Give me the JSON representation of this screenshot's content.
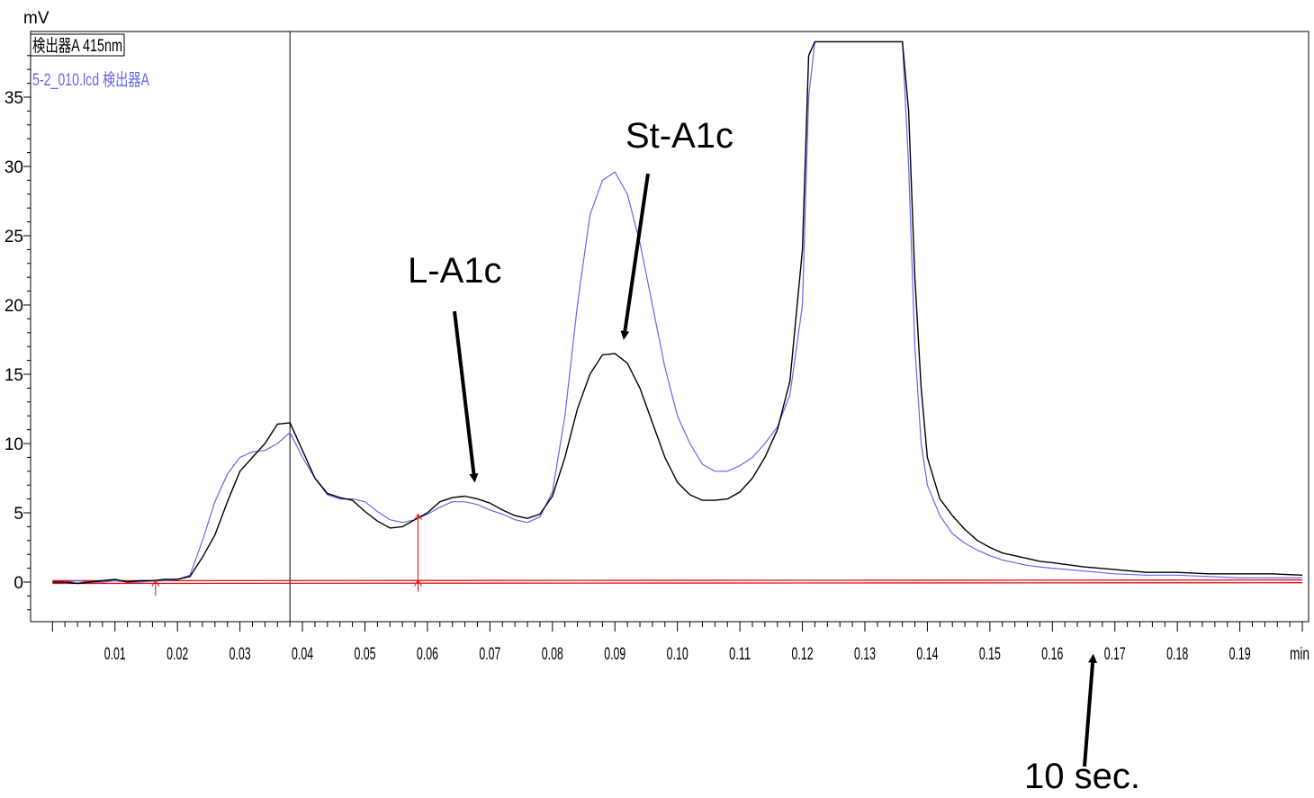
{
  "chart_data": {
    "type": "line",
    "ylabel": "mV",
    "xunit_label": "min",
    "xlim": [
      0.0,
      0.2
    ],
    "ylim": [
      -3,
      39
    ],
    "x_ticks": [
      0.01,
      0.02,
      0.03,
      0.04,
      0.05,
      0.06,
      0.07,
      0.08,
      0.09,
      0.1,
      0.11,
      0.12,
      0.13,
      0.14,
      0.15,
      0.16,
      0.17,
      0.18,
      0.19
    ],
    "x_tick_labels": [
      "0.01",
      "0.02",
      "0.03",
      "0.04",
      "0.05",
      "0.06",
      "0.07",
      "0.08",
      "0.09",
      "0.10",
      "0.11",
      "0.12",
      "0.13",
      "0.14",
      "0.15",
      "0.16",
      "0.17",
      "0.18",
      "0.19"
    ],
    "y_ticks": [
      0,
      5,
      10,
      15,
      20,
      25,
      30,
      35
    ],
    "y_tick_labels": [
      "0",
      "5",
      "10",
      "15",
      "20",
      "25",
      "30",
      "35"
    ],
    "legend": [
      "検出器A 415nm",
      "5-2_010.lcd 検出器A"
    ],
    "colors": {
      "series_black": "#000000",
      "series_blue": "#6666ee",
      "baseline": "#dd1111",
      "marker": "#dd1111"
    },
    "cursor_x": 0.038,
    "series": [
      {
        "color": "#000000",
        "x": [
          0.0,
          0.002,
          0.004,
          0.006,
          0.008,
          0.01,
          0.012,
          0.014,
          0.016,
          0.018,
          0.02,
          0.022,
          0.024,
          0.026,
          0.028,
          0.03,
          0.032,
          0.034,
          0.036,
          0.038,
          0.04,
          0.042,
          0.044,
          0.046,
          0.048,
          0.05,
          0.052,
          0.054,
          0.056,
          0.058,
          0.06,
          0.062,
          0.064,
          0.066,
          0.068,
          0.07,
          0.072,
          0.074,
          0.076,
          0.078,
          0.08,
          0.082,
          0.084,
          0.086,
          0.088,
          0.09,
          0.092,
          0.094,
          0.096,
          0.098,
          0.1,
          0.102,
          0.104,
          0.106,
          0.108,
          0.11,
          0.112,
          0.114,
          0.116,
          0.118,
          0.12,
          0.121,
          0.122,
          0.124,
          0.126,
          0.128,
          0.13,
          0.132,
          0.134,
          0.136,
          0.137,
          0.138,
          0.139,
          0.14,
          0.142,
          0.144,
          0.146,
          0.148,
          0.15,
          0.152,
          0.154,
          0.156,
          0.158,
          0.16,
          0.165,
          0.17,
          0.175,
          0.18,
          0.185,
          0.19,
          0.195,
          0.2
        ],
        "y": [
          0.0,
          0.0,
          -0.1,
          0.0,
          0.1,
          0.2,
          0.0,
          0.1,
          0.1,
          0.2,
          0.2,
          0.4,
          1.8,
          3.4,
          5.8,
          8.0,
          9.0,
          10.0,
          11.4,
          11.5,
          9.5,
          7.5,
          6.4,
          6.1,
          5.9,
          5.1,
          4.4,
          3.9,
          4.0,
          4.5,
          5.0,
          5.8,
          6.1,
          6.2,
          6.0,
          5.7,
          5.2,
          4.8,
          4.6,
          4.9,
          6.2,
          9.0,
          12.5,
          15.0,
          16.4,
          16.5,
          15.8,
          14.0,
          11.5,
          9.0,
          7.2,
          6.3,
          5.9,
          5.9,
          6.0,
          6.5,
          7.5,
          9.0,
          11.0,
          14.5,
          24.0,
          38.0,
          39,
          39,
          39,
          39,
          39,
          39,
          39,
          39,
          34.0,
          22.0,
          14.0,
          9.0,
          6.0,
          4.8,
          3.8,
          3.0,
          2.5,
          2.1,
          1.9,
          1.7,
          1.5,
          1.4,
          1.1,
          0.9,
          0.7,
          0.7,
          0.6,
          0.6,
          0.6,
          0.5
        ]
      },
      {
        "color": "#6666ee",
        "x": [
          0.0,
          0.002,
          0.004,
          0.006,
          0.008,
          0.01,
          0.012,
          0.014,
          0.016,
          0.018,
          0.02,
          0.022,
          0.024,
          0.026,
          0.028,
          0.03,
          0.032,
          0.034,
          0.036,
          0.038,
          0.04,
          0.042,
          0.044,
          0.046,
          0.048,
          0.05,
          0.052,
          0.054,
          0.056,
          0.058,
          0.06,
          0.062,
          0.064,
          0.066,
          0.068,
          0.07,
          0.072,
          0.074,
          0.076,
          0.078,
          0.08,
          0.082,
          0.084,
          0.086,
          0.088,
          0.09,
          0.092,
          0.094,
          0.096,
          0.098,
          0.1,
          0.102,
          0.104,
          0.106,
          0.108,
          0.11,
          0.112,
          0.114,
          0.116,
          0.118,
          0.12,
          0.121,
          0.122,
          0.124,
          0.126,
          0.128,
          0.13,
          0.132,
          0.134,
          0.136,
          0.137,
          0.138,
          0.139,
          0.14,
          0.142,
          0.144,
          0.146,
          0.148,
          0.15,
          0.152,
          0.154,
          0.156,
          0.158,
          0.16,
          0.165,
          0.17,
          0.175,
          0.18,
          0.185,
          0.19,
          0.195,
          0.2
        ],
        "y": [
          0.0,
          0.0,
          0.1,
          0.0,
          0.0,
          0.1,
          0.0,
          0.0,
          0.1,
          0.1,
          0.2,
          0.5,
          3.0,
          5.8,
          7.8,
          9.0,
          9.4,
          9.5,
          10.0,
          10.8,
          9.0,
          7.5,
          6.3,
          6.0,
          6.0,
          5.8,
          5.1,
          4.5,
          4.3,
          4.5,
          4.9,
          5.4,
          5.8,
          5.8,
          5.6,
          5.2,
          4.9,
          4.5,
          4.3,
          4.7,
          6.5,
          12.0,
          20.0,
          26.5,
          29.0,
          29.6,
          28.0,
          24.5,
          20.0,
          15.5,
          12.0,
          10.0,
          8.5,
          8.0,
          8.0,
          8.4,
          9.0,
          10.0,
          11.2,
          13.5,
          20.0,
          35.0,
          39,
          39,
          39,
          39,
          39,
          39,
          39,
          39,
          30.0,
          17.0,
          10.0,
          7.0,
          4.8,
          3.5,
          2.8,
          2.3,
          1.9,
          1.6,
          1.4,
          1.2,
          1.1,
          1.0,
          0.8,
          0.6,
          0.5,
          0.5,
          0.4,
          0.3,
          0.3,
          0.3
        ]
      }
    ],
    "baseline": {
      "x": [
        0.0,
        0.2
      ],
      "y": [
        0.1,
        0.15
      ]
    },
    "integration_markers": [
      0.0165,
      0.0585
    ],
    "annotations": [
      {
        "label": "L-A1c",
        "arrow_to": [
          0.0675,
          7.5
        ]
      },
      {
        "label": "St-A1c",
        "arrow_to": [
          0.0915,
          17.8
        ]
      },
      {
        "label": "10 sec.",
        "arrow_to": [
          0.1665,
          -5.5
        ]
      }
    ]
  }
}
